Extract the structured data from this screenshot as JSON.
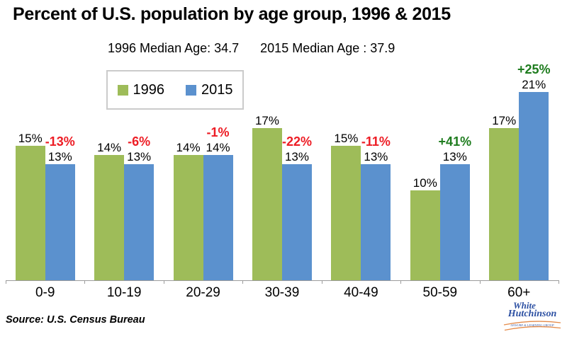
{
  "title": "Percent of U.S. population by age group, 1996 & 2015",
  "subtitle": {
    "median_1996": "1996 Median Age: 34.7",
    "median_2015": "2015 Median Age : 37.9"
  },
  "legend": {
    "items": [
      {
        "label": "1996",
        "color": "#9ebc59"
      },
      {
        "label": "2015",
        "color": "#5b91ce"
      }
    ]
  },
  "source": "Source: U.S. Census Bureau",
  "logo": {
    "line1": "White",
    "line2": "Hutchinson",
    "tagline": "LEISURE & LEARNING GROUP"
  },
  "colors": {
    "bar_1996": "#9ebc59",
    "bar_2015": "#5b91ce",
    "decrease_label": "#ed1c24",
    "increase_label": "#1e7c1e",
    "axis_line": "#9c9c9c",
    "logo_blue": "#2b4fa2",
    "logo_orange": "#e58b4a"
  },
  "chart_data": {
    "type": "bar",
    "title": "Percent of U.S. population by age group, 1996 & 2015",
    "categories": [
      "0-9",
      "10-19",
      "20-29",
      "30-39",
      "40-49",
      "50-59",
      "60+"
    ],
    "series": [
      {
        "name": "1996",
        "color": "#9ebc59",
        "values": [
          15,
          14,
          14,
          17,
          15,
          10,
          17
        ]
      },
      {
        "name": "2015",
        "color": "#5b91ce",
        "values": [
          13,
          13,
          14,
          13,
          13,
          13,
          21
        ]
      }
    ],
    "change_labels": [
      {
        "text": "-13%",
        "color": "#ed1c24"
      },
      {
        "text": "-6%",
        "color": "#ed1c24"
      },
      {
        "text": "-1%",
        "color": "#ed1c24"
      },
      {
        "text": "-22%",
        "color": "#ed1c24"
      },
      {
        "text": "-11%",
        "color": "#ed1c24"
      },
      {
        "text": "+41%",
        "color": "#1e7c1e"
      },
      {
        "text": "+25%",
        "color": "#1e7c1e"
      }
    ],
    "value_suffix": "%",
    "xlabel": "",
    "ylabel": "",
    "ylim": [
      0,
      25
    ],
    "grid": false,
    "y_axis_shown": false,
    "legend_position": "top-left"
  }
}
